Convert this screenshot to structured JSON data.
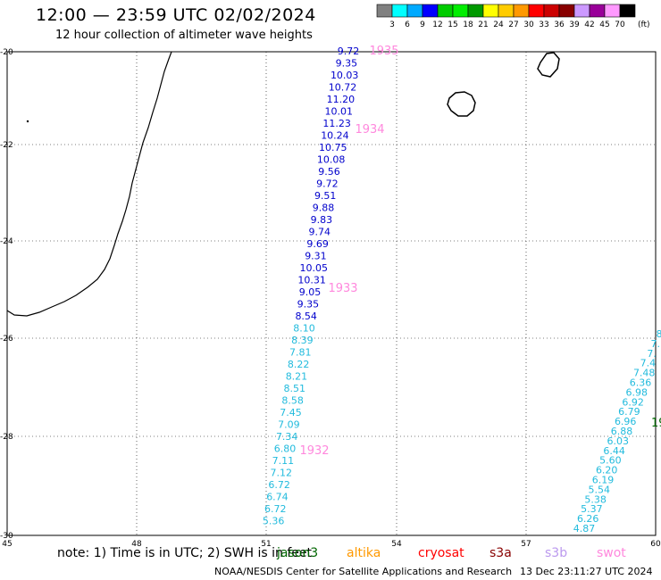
{
  "header": {
    "title": "12:00 — 23:59 UTC 02/02/2024",
    "subtitle": "12 hour collection of altimeter wave heights"
  },
  "legend": {
    "unit": "(ft)",
    "colors": [
      "#808080",
      "#00ffff",
      "#00aaff",
      "#0000ff",
      "#00cc00",
      "#00ee00",
      "#009900",
      "#ffff00",
      "#ffcc00",
      "#ff9900",
      "#ff0000",
      "#cc0000",
      "#880000",
      "#cc99ff",
      "#990099",
      "#ff99ff",
      "#000000"
    ],
    "labels": [
      "3",
      "6",
      "9",
      "12",
      "15",
      "18",
      "21",
      "24",
      "27",
      "30",
      "33",
      "36",
      "39",
      "42",
      "45",
      "70"
    ]
  },
  "axes": {
    "x_labels": [
      "45",
      "48",
      "51",
      "54",
      "57",
      "60"
    ],
    "y_labels": [
      "-20",
      "-22",
      "-24",
      "-26",
      "-28",
      "-30"
    ]
  },
  "track_west": {
    "color_dark": "#0000cc",
    "color_light": "#22bbdd",
    "values": [
      "9.72",
      "9.35",
      "10.03",
      "10.72",
      "11.20",
      "10.01",
      "11.23",
      "10.24",
      "10.75",
      "10.08",
      "9.56",
      "9.72",
      "9.51",
      "9.88",
      "9.83",
      "9.74",
      "9.69",
      "9.31",
      "10.05",
      "10.31",
      "9.05",
      "9.35",
      "8.54",
      "8.10",
      "8.39",
      "7.81",
      "8.22",
      "8.21",
      "8.51",
      "8.58",
      "7.45",
      "7.09",
      "7.34",
      "6.80",
      "7.11",
      "7.12",
      "6.72",
      "6.74",
      "6.72",
      "5.36"
    ],
    "passes": [
      "1935",
      "1934",
      "1933",
      "1932"
    ]
  },
  "track_east": {
    "values": [
      "8",
      "7.",
      "7.",
      "7.4",
      "7.48",
      "6.36",
      "6.98",
      "6.92",
      "6.79",
      "6.96",
      "6.88",
      "6.03",
      "6.44",
      "5.60",
      "6.20",
      "6.19",
      "5.54",
      "5.38",
      "5.37",
      "6.26",
      "4.87"
    ],
    "pass": "19"
  },
  "footnote": {
    "note": "note:  1) Time is in UTC; 2) SWH is in feet",
    "satellites": [
      {
        "name": "jason3",
        "color": "#006600"
      },
      {
        "name": "altika",
        "color": "#ff9900"
      },
      {
        "name": "cryosat",
        "color": "#ff0000"
      },
      {
        "name": "s3a",
        "color": "#880000"
      },
      {
        "name": "s3b",
        "color": "#bb99ee"
      },
      {
        "name": "swot",
        "color": "#ff88dd"
      }
    ],
    "credit": "NOAA/NESDIS Center for Satellite Applications and Research",
    "timestamp": "13 Dec 23:11:27 UTC 2024"
  }
}
